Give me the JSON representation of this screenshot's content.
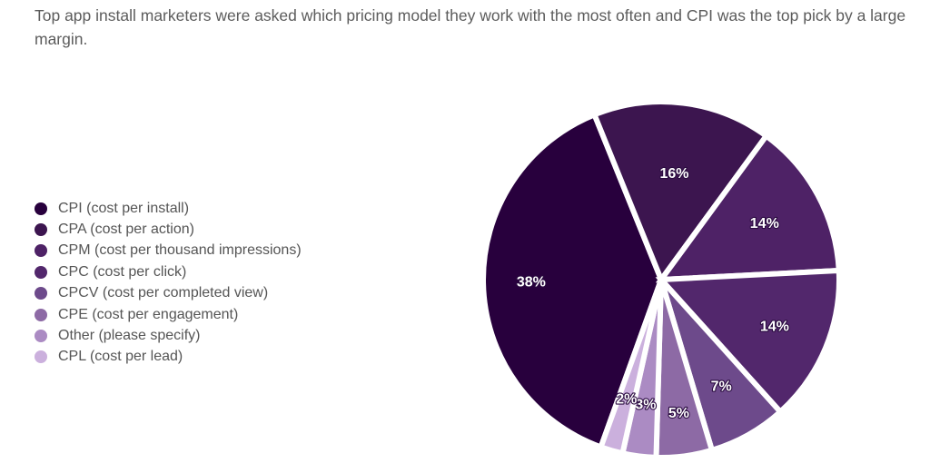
{
  "caption": "Top app install marketers were asked which pricing model they work with the most often and CPI was the top pick by a large margin.",
  "chart_data": {
    "type": "pie",
    "title": "Top app install marketers were asked which pricing model they work with the most often and CPI was the top pick by a large margin.",
    "legend_position": "left",
    "slices": [
      {
        "label": "CPI (cost per install)",
        "value": 38,
        "display": "38%",
        "color": "#28003d"
      },
      {
        "label": "CPA (cost per action)",
        "value": 16,
        "display": "16%",
        "color": "#3c154f"
      },
      {
        "label": "CPM (cost per thousand impressions)",
        "value": 14,
        "display": "14%",
        "color": "#4e2266"
      },
      {
        "label": "CPC (cost per click)",
        "value": 14,
        "display": "14%",
        "color": "#52276c"
      },
      {
        "label": "CPCV (cost per completed view)",
        "value": 7,
        "display": "7%",
        "color": "#6d4a8b"
      },
      {
        "label": "CPE (cost per engagement)",
        "value": 5,
        "display": "5%",
        "color": "#8d6aa5"
      },
      {
        "label": "Other (please specify)",
        "value": 3,
        "display": "3%",
        "color": "#ab8bc3"
      },
      {
        "label": "CPL (cost per lead)",
        "value": 2,
        "display": "2%",
        "color": "#cbb0dd"
      }
    ]
  }
}
